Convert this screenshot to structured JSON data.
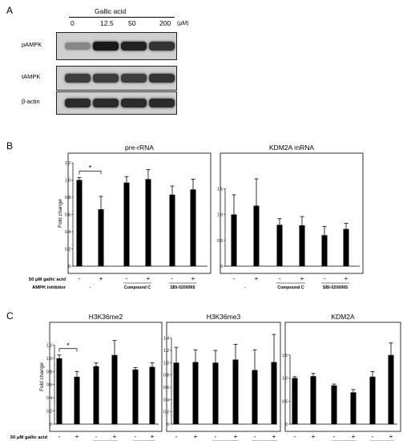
{
  "panel_a": {
    "letter": "A",
    "treatment": "Gallic acid",
    "doses": [
      "0",
      "12.5",
      "50",
      "200"
    ],
    "unit": "(μM)",
    "blots": [
      {
        "label": "pAMPK",
        "intensities": [
          0.35,
          0.95,
          0.9,
          0.8
        ]
      },
      {
        "label": "tAMPK",
        "intensities": [
          0.75,
          0.75,
          0.75,
          0.8
        ]
      },
      {
        "label": "β-actin",
        "intensities": [
          0.85,
          0.85,
          0.85,
          0.85
        ]
      }
    ]
  },
  "panel_b": {
    "letter": "B"
  },
  "panel_c": {
    "letter": "C"
  },
  "chart_data": [
    {
      "type": "bar",
      "panel": "B",
      "title": "pre-rRNA",
      "ylabel": "Fold change",
      "ylim": [
        0,
        1.2
      ],
      "yticks": [
        "0",
        "0.2",
        "0.4",
        "0.6",
        "0.8",
        "1.0",
        "1.2"
      ],
      "values": [
        1.0,
        0.66,
        0.97,
        1.01,
        0.83,
        0.89
      ],
      "errors": [
        0.03,
        0.15,
        0.07,
        0.11,
        0.1,
        0.12
      ],
      "significance": "*"
    },
    {
      "type": "bar",
      "panel": "B",
      "title": "KDM2A mRNA",
      "ylabel": "",
      "ylim": [
        0,
        2.0
      ],
      "yticks": [
        "0",
        "0.5",
        "1.0",
        "1.5"
      ],
      "values": [
        1.0,
        1.17,
        0.8,
        0.79,
        0.6,
        0.72
      ],
      "errors": [
        0.38,
        0.52,
        0.12,
        0.17,
        0.17,
        0.11
      ],
      "significance": ""
    },
    {
      "type": "bar",
      "panel": "C",
      "title": "H3K36me2",
      "ylabel": "Fold change",
      "ylim": [
        0,
        1.4
      ],
      "yticks": [
        "0",
        "0.2",
        "0.4",
        "0.6",
        "0.8",
        "1.0",
        "1.2"
      ],
      "values": [
        1.0,
        0.72,
        0.88,
        1.05,
        0.83,
        0.87
      ],
      "errors": [
        0.05,
        0.08,
        0.05,
        0.22,
        0.03,
        0.06
      ],
      "significance": "*"
    },
    {
      "type": "bar",
      "panel": "C",
      "title": "H3K36me3",
      "ylabel": "",
      "ylim": [
        0,
        1.5
      ],
      "yticks": [
        "0",
        "0.2",
        "0.4",
        "0.6",
        "0.8",
        "1.0",
        "1.2",
        "1.4"
      ],
      "values": [
        1.0,
        1.01,
        1.0,
        1.05,
        0.88,
        1.01
      ],
      "errors": [
        0.25,
        0.2,
        0.2,
        0.25,
        0.33,
        0.45
      ],
      "significance": ""
    },
    {
      "type": "bar",
      "panel": "C",
      "title": "KDM2A",
      "ylabel": "",
      "ylim": [
        0,
        2.0
      ],
      "yticks": [
        "0",
        "0.5",
        "1.0",
        "1.5"
      ],
      "values": [
        1.0,
        1.04,
        0.84,
        0.69,
        1.03,
        1.5
      ],
      "errors": [
        0.03,
        0.06,
        0.03,
        0.06,
        0.11,
        0.26
      ],
      "significance": ""
    }
  ],
  "x_annotation": {
    "row1_label": "50 μM gallic acid",
    "row2_label": "AMPK inhibitor",
    "signs": [
      "-",
      "+",
      "-",
      "+",
      "-",
      "+"
    ],
    "groups": [
      "-",
      "Compound C",
      "SBI-0206965"
    ]
  }
}
